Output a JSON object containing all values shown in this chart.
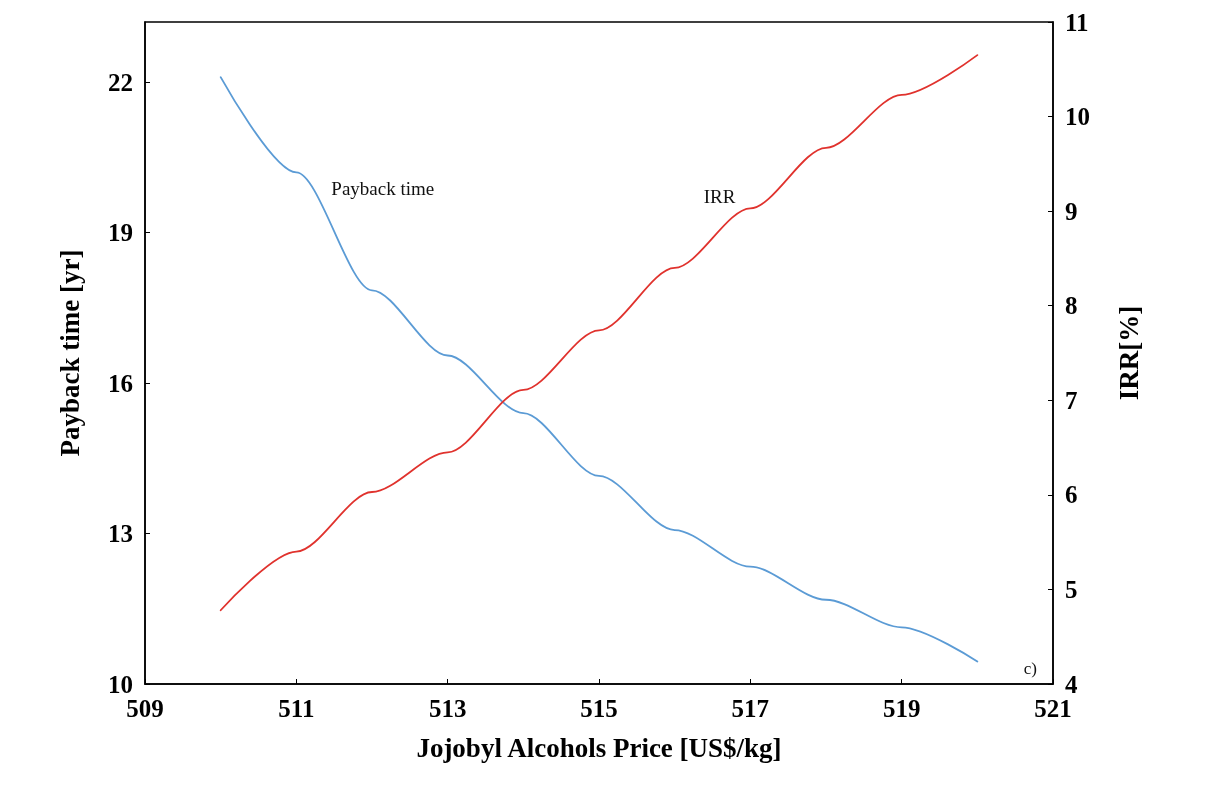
{
  "chart_data": {
    "type": "line",
    "xlabel": "Jojobyl Alcohols Price [US$/kg]",
    "ylabel": "Payback time [yr]",
    "y2label": "IRR[%]",
    "x": [
      510,
      511,
      512,
      513,
      514,
      515,
      516,
      517,
      518,
      519,
      520
    ],
    "series": [
      {
        "name": "Payback time",
        "color": "#5b9bd5",
        "values": [
          22.1,
          20.2,
          17.85,
          16.55,
          15.4,
          14.15,
          13.07,
          12.34,
          11.68,
          11.13,
          10.45
        ]
      },
      {
        "name": "IRR",
        "color": "#e0322d",
        "axis": "y2",
        "values": [
          4.78,
          5.4,
          6.03,
          6.45,
          7.11,
          7.74,
          8.4,
          9.03,
          9.67,
          10.23,
          10.65
        ]
      }
    ],
    "xlim": [
      509,
      521
    ],
    "xticks": [
      509,
      511,
      513,
      515,
      517,
      519,
      521
    ],
    "ylim": [
      10,
      23.2
    ],
    "yticks": [
      10,
      13,
      16,
      19,
      22
    ],
    "y2lim": [
      4,
      11
    ],
    "y2ticks": [
      4,
      5,
      6,
      7,
      8,
      9,
      10,
      11
    ],
    "annotations": [
      "c)"
    ],
    "grid": false,
    "legend": false,
    "marker": "none",
    "line_style": "solid"
  }
}
